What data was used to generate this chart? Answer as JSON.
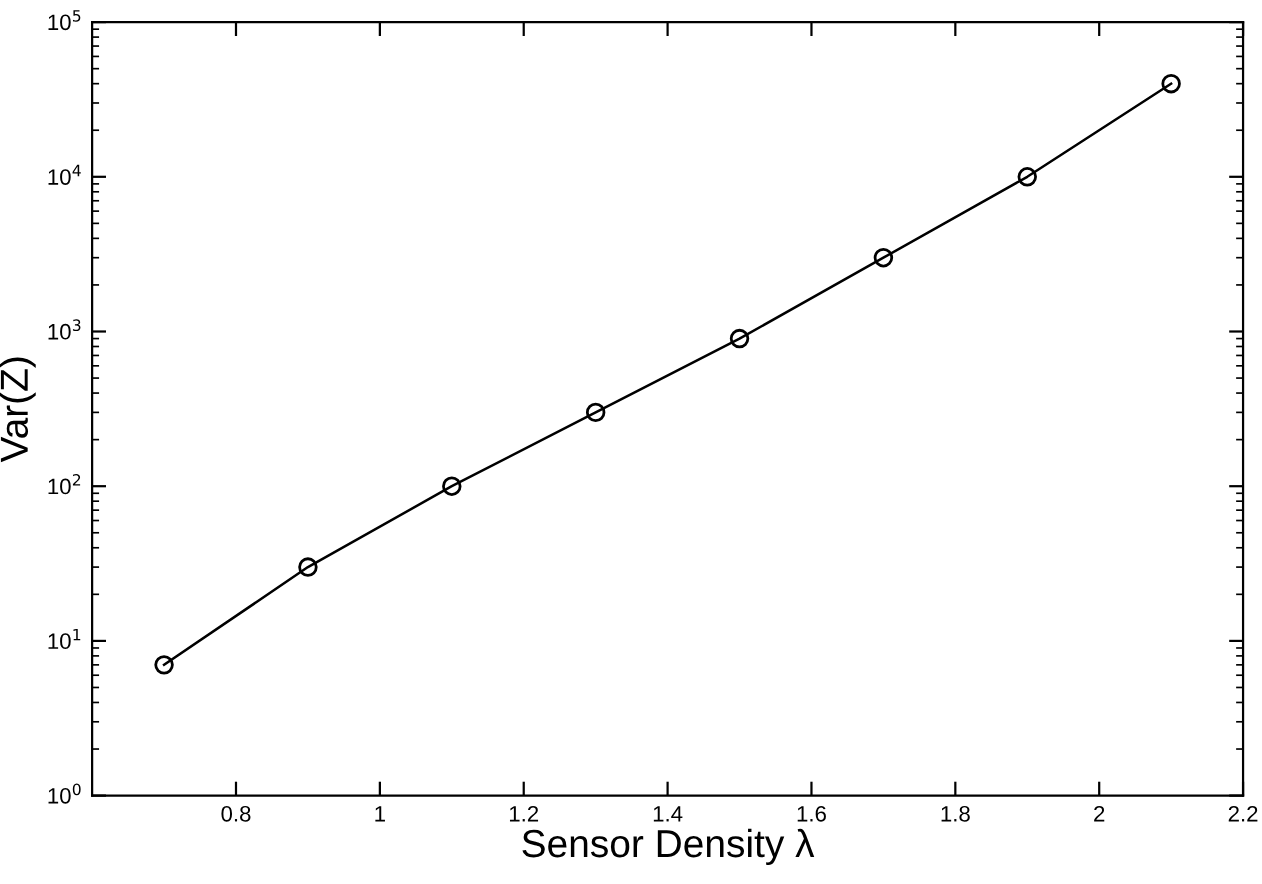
{
  "chart_data": {
    "type": "line",
    "xlabel": "Sensor Density λ",
    "ylabel": "Var(Z)",
    "x": [
      0.7,
      0.9,
      1.1,
      1.3,
      1.5,
      1.7,
      1.9,
      2.1
    ],
    "series": [
      {
        "color": "#000000",
        "values": [
          7,
          30,
          100,
          300,
          900,
          3000,
          10000,
          40000
        ]
      }
    ],
    "marker": "circle",
    "line_style": "solid",
    "log": "y",
    "grid": false,
    "legend": false,
    "xlim": [
      0.6,
      2.2
    ],
    "xticks": [
      0.8,
      1,
      1.2,
      1.4,
      1.6,
      1.8,
      2,
      2.2
    ],
    "ylim": [
      1,
      100000
    ],
    "yticks": [
      {
        "value": 1,
        "label": "10$^{0}$"
      },
      {
        "value": 10,
        "label": "10$^{1}$"
      },
      {
        "value": 100,
        "label": "10$^{2}$"
      },
      {
        "value": 1000,
        "label": "10$^{3}$"
      },
      {
        "value": 10000,
        "label": "10$^{4}$"
      },
      {
        "value": 100000,
        "label": "10$^{5}$"
      }
    ]
  }
}
